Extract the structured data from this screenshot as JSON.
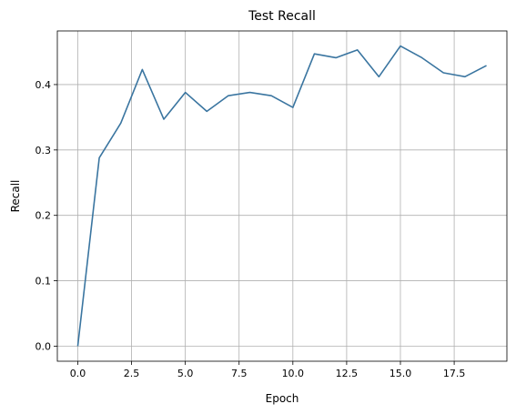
{
  "chart_data": {
    "type": "line",
    "title": "Test Recall",
    "xlabel": "Epoch",
    "ylabel": "Recall",
    "xlim": [
      -0.95,
      19.95
    ],
    "ylim": [
      -0.023,
      0.482
    ],
    "xticks": [
      0.0,
      2.5,
      5.0,
      7.5,
      10.0,
      12.5,
      15.0,
      17.5
    ],
    "xtick_labels": [
      "0.0",
      "2.5",
      "5.0",
      "7.5",
      "10.0",
      "12.5",
      "15.0",
      "17.5"
    ],
    "yticks": [
      0.0,
      0.1,
      0.2,
      0.3,
      0.4
    ],
    "ytick_labels": [
      "0.0",
      "0.1",
      "0.2",
      "0.3",
      "0.4"
    ],
    "grid": true,
    "series": [
      {
        "color": "#3a75a0",
        "x": [
          0,
          1,
          2,
          3,
          4,
          5,
          6,
          7,
          8,
          9,
          10,
          11,
          12,
          13,
          14,
          15,
          16,
          17,
          18,
          19
        ],
        "values": [
          0.0,
          0.288,
          0.341,
          0.423,
          0.347,
          0.388,
          0.359,
          0.383,
          0.388,
          0.383,
          0.365,
          0.447,
          0.441,
          0.453,
          0.412,
          0.459,
          0.441,
          0.418,
          0.412,
          0.429
        ]
      }
    ]
  }
}
